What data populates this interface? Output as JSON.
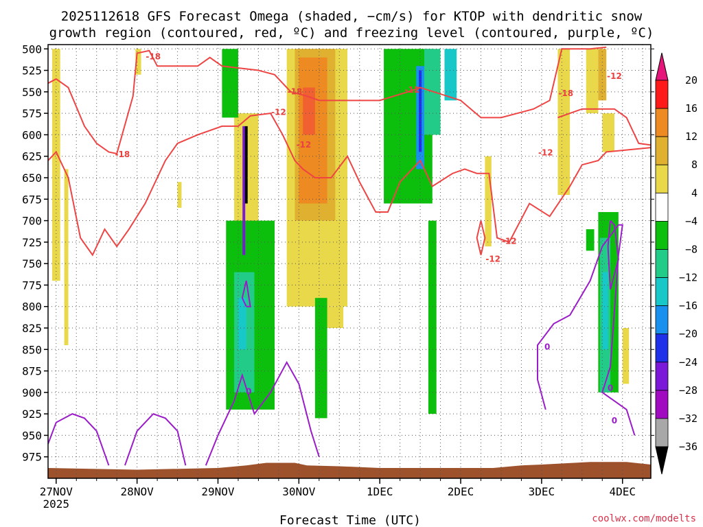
{
  "chart_data": {
    "type": "heatmap",
    "title_lines": [
      "2025112618 GFS Forecast Omega (shaded, −cm/s) for KTOP with dendritic snow",
      "growth region (contoured, red, ºC) and freezing level (contoured, purple, ºC)"
    ],
    "xlabel": "Forecast Time (UTC)",
    "credit": "coolwx.com/modelts",
    "x_ticks": [
      "27NOV",
      "28NOV",
      "29NOV",
      "30NOV",
      "1DEC",
      "2DEC",
      "3DEC",
      "4DEC"
    ],
    "x_sub_label": "2025",
    "x_range_days": [
      -0.1,
      7.35
    ],
    "y_ticks": [
      500,
      525,
      550,
      575,
      600,
      625,
      650,
      675,
      700,
      725,
      750,
      775,
      800,
      825,
      850,
      875,
      900,
      925,
      950,
      975
    ],
    "ylim_hpa": [
      495,
      1000
    ],
    "colorbar": {
      "labels": [
        "20",
        "16",
        "12",
        "8",
        "4",
        "−4",
        "−8",
        "−12",
        "−16",
        "−20",
        "−24",
        "−28",
        "−32",
        "−36"
      ],
      "colors": [
        "#ff1a1a",
        "#ee8a22",
        "#e0b030",
        "#e8d84a",
        "#ffffff",
        "#0cbf0c",
        "#22cc88",
        "#18c8c8",
        "#1a90ee",
        "#1e30e8",
        "#7a1ad8",
        "#a00ac0",
        "#a8a8a8"
      ],
      "top_arrow_color": "#e6157a",
      "bottom_arrow_color": "#000000"
    },
    "contour_labels_red": [
      "-18",
      "-18",
      "-18",
      "-18",
      "-12",
      "-12",
      "-12",
      "-12",
      "-12",
      "-12",
      "-12"
    ],
    "contour_labels_purple": [
      "0",
      "0",
      "0",
      "0"
    ],
    "omega_regions": [
      {
        "level": 4,
        "color": "#e8d84a",
        "x0": -0.05,
        "x1": 0.05,
        "p0": 500,
        "p1": 770
      },
      {
        "level": 4,
        "color": "#e8d84a",
        "x0": 0.1,
        "x1": 0.15,
        "p0": 640,
        "p1": 845
      },
      {
        "level": 4,
        "color": "#e8d84a",
        "x0": 0.98,
        "x1": 1.05,
        "p0": 500,
        "p1": 530
      },
      {
        "level": 4,
        "color": "#e8d84a",
        "x0": 1.5,
        "x1": 1.55,
        "p0": 655,
        "p1": 685
      },
      {
        "level": 4,
        "color": "#e8d84a",
        "x0": 2.2,
        "x1": 2.5,
        "p0": 575,
        "p1": 800
      },
      {
        "level": 4,
        "color": "#e8d84a",
        "x0": 2.85,
        "x1": 3.6,
        "p0": 500,
        "p1": 800
      },
      {
        "level": 8,
        "color": "#e0b030",
        "x0": 2.95,
        "x1": 3.45,
        "p0": 500,
        "p1": 700
      },
      {
        "level": 12,
        "color": "#ee8a22",
        "x0": 3.0,
        "x1": 3.35,
        "p0": 510,
        "p1": 680
      },
      {
        "level": 16,
        "color": "#f06030",
        "x0": 3.05,
        "x1": 3.2,
        "p0": 545,
        "p1": 600
      },
      {
        "level": 4,
        "color": "#e8d84a",
        "x0": 3.25,
        "x1": 3.55,
        "p0": 800,
        "p1": 825
      },
      {
        "level": 4,
        "color": "#e8d84a",
        "x0": 5.3,
        "x1": 5.38,
        "p0": 625,
        "p1": 730
      },
      {
        "level": 4,
        "color": "#e8d84a",
        "x0": 6.2,
        "x1": 6.35,
        "p0": 500,
        "p1": 670
      },
      {
        "level": 4,
        "color": "#e8d84a",
        "x0": 6.55,
        "x1": 6.7,
        "p0": 500,
        "p1": 575
      },
      {
        "level": 8,
        "color": "#e0b030",
        "x0": 6.7,
        "x1": 6.8,
        "p0": 500,
        "p1": 560
      },
      {
        "level": 4,
        "color": "#e8d84a",
        "x0": 6.75,
        "x1": 6.9,
        "p0": 575,
        "p1": 620
      },
      {
        "level": 4,
        "color": "#e8d84a",
        "x0": 7.0,
        "x1": 7.08,
        "p0": 825,
        "p1": 890
      },
      {
        "level": -4,
        "color": "#0cbf0c",
        "x0": 2.05,
        "x1": 2.25,
        "p0": 500,
        "p1": 580
      },
      {
        "level": -4,
        "color": "#0cbf0c",
        "x0": 2.1,
        "x1": 2.7,
        "p0": 700,
        "p1": 920
      },
      {
        "level": -8,
        "color": "#22cc88",
        "x0": 2.2,
        "x1": 2.45,
        "p0": 760,
        "p1": 900
      },
      {
        "level": -12,
        "color": "#18c8c8",
        "x0": 2.25,
        "x1": 2.35,
        "p0": 790,
        "p1": 850
      },
      {
        "level": -4,
        "color": "#0cbf0c",
        "x0": 3.2,
        "x1": 3.35,
        "p0": 790,
        "p1": 930
      },
      {
        "level": -4,
        "color": "#0cbf0c",
        "x0": 4.05,
        "x1": 4.65,
        "p0": 500,
        "p1": 680
      },
      {
        "level": -4,
        "color": "#0cbf0c",
        "x0": 4.6,
        "x1": 4.7,
        "p0": 700,
        "p1": 925
      },
      {
        "level": -8,
        "color": "#22cc88",
        "x0": 4.55,
        "x1": 4.75,
        "p0": 500,
        "p1": 600
      },
      {
        "level": -12,
        "color": "#18c8c8",
        "x0": 4.8,
        "x1": 4.95,
        "p0": 500,
        "p1": 560
      },
      {
        "level": -16,
        "color": "#1a90ee",
        "x0": 4.45,
        "x1": 4.55,
        "p0": 520,
        "p1": 640
      },
      {
        "level": -4,
        "color": "#0cbf0c",
        "x0": 6.55,
        "x1": 6.65,
        "p0": 710,
        "p1": 735
      },
      {
        "level": -4,
        "color": "#0cbf0c",
        "x0": 6.7,
        "x1": 6.95,
        "p0": 690,
        "p1": 900
      },
      {
        "level": -8,
        "color": "#22cc88",
        "x0": 6.72,
        "x1": 6.85,
        "p0": 720,
        "p1": 900
      },
      {
        "level": -12,
        "color": "#18c8c8",
        "x0": 6.75,
        "x1": 6.82,
        "p0": 760,
        "p1": 850
      }
    ],
    "omega_spikes": [
      {
        "level": -24,
        "color": "#7a1ad8",
        "x": 2.32,
        "p0": 590,
        "p1": 740
      },
      {
        "level": -36,
        "color": "#000000",
        "x": 2.35,
        "p0": 590,
        "p1": 680
      },
      {
        "level": -20,
        "color": "#1e30e8",
        "x": 4.5,
        "p0": 525,
        "p1": 620
      }
    ],
    "red_minus18_upper": [
      [
        -0.1,
        540
      ],
      [
        0,
        535
      ],
      [
        0.15,
        545
      ],
      [
        0.35,
        590
      ],
      [
        0.5,
        610
      ],
      [
        0.65,
        620
      ],
      [
        0.75,
        622
      ],
      [
        0.95,
        555
      ],
      [
        1.0,
        505
      ],
      [
        1.15,
        502
      ],
      [
        1.25,
        520
      ],
      [
        1.5,
        520
      ],
      [
        1.75,
        520
      ],
      [
        1.9,
        510
      ],
      [
        2.05,
        520
      ],
      [
        2.5,
        525
      ],
      [
        2.7,
        530
      ],
      [
        2.9,
        550
      ],
      [
        3.1,
        555
      ],
      [
        3.25,
        560
      ],
      [
        3.5,
        560
      ],
      [
        4.0,
        560
      ],
      [
        4.35,
        550
      ],
      [
        4.5,
        545
      ],
      [
        5.0,
        560
      ],
      [
        5.25,
        580
      ],
      [
        5.5,
        580
      ],
      [
        5.9,
        570
      ],
      [
        6.1,
        560
      ],
      [
        6.25,
        500
      ],
      [
        6.6,
        500
      ],
      [
        6.8,
        498
      ]
    ],
    "red_minus18_lower": [
      [
        6.2,
        580
      ],
      [
        6.5,
        570
      ],
      [
        6.65,
        570
      ],
      [
        6.9,
        570
      ],
      [
        7.05,
        580
      ],
      [
        7.2,
        610
      ],
      [
        7.35,
        612
      ]
    ],
    "red_minus12": [
      [
        -0.1,
        630
      ],
      [
        0,
        620
      ],
      [
        0.15,
        650
      ],
      [
        0.3,
        720
      ],
      [
        0.45,
        740
      ],
      [
        0.6,
        710
      ],
      [
        0.75,
        730
      ],
      [
        0.9,
        710
      ],
      [
        1.0,
        695
      ],
      [
        1.1,
        680
      ],
      [
        1.2,
        660
      ],
      [
        1.35,
        630
      ],
      [
        1.5,
        610
      ],
      [
        1.75,
        600
      ],
      [
        2.05,
        590
      ],
      [
        2.25,
        590
      ],
      [
        2.4,
        578
      ],
      [
        2.65,
        575
      ],
      [
        2.8,
        600
      ],
      [
        2.95,
        630
      ],
      [
        3.05,
        640
      ],
      [
        3.2,
        650
      ],
      [
        3.4,
        650
      ],
      [
        3.6,
        625
      ],
      [
        3.75,
        655
      ],
      [
        3.95,
        690
      ],
      [
        4.1,
        690
      ],
      [
        4.25,
        655
      ],
      [
        4.5,
        630
      ],
      [
        4.65,
        660
      ],
      [
        4.9,
        645
      ],
      [
        5.05,
        640
      ],
      [
        5.2,
        645
      ],
      [
        5.35,
        645
      ],
      [
        5.45,
        720
      ],
      [
        5.6,
        725
      ],
      [
        5.85,
        680
      ],
      [
        6.1,
        695
      ],
      [
        6.35,
        660
      ],
      [
        6.5,
        635
      ],
      [
        6.7,
        630
      ],
      [
        6.8,
        620
      ],
      [
        7.35,
        615
      ]
    ],
    "red_closed": [
      [
        5.25,
        740
      ],
      [
        5.2,
        720
      ],
      [
        5.25,
        700
      ],
      [
        5.3,
        720
      ],
      [
        5.25,
        740
      ]
    ],
    "purple_lower_left": [
      [
        -0.1,
        960
      ],
      [
        0,
        935
      ],
      [
        0.2,
        925
      ],
      [
        0.35,
        930
      ],
      [
        0.5,
        945
      ],
      [
        0.65,
        985
      ]
    ],
    "purple_lower_mid": [
      [
        0.85,
        985
      ],
      [
        1.0,
        945
      ],
      [
        1.2,
        925
      ],
      [
        1.35,
        930
      ],
      [
        1.5,
        945
      ],
      [
        1.6,
        985
      ]
    ],
    "purple_right_steep": [
      [
        1.85,
        985
      ],
      [
        2.0,
        950
      ],
      [
        2.2,
        910
      ],
      [
        2.3,
        880
      ],
      [
        2.35,
        895
      ],
      [
        2.45,
        925
      ],
      [
        2.65,
        900
      ],
      [
        2.85,
        865
      ],
      [
        3.0,
        890
      ],
      [
        3.15,
        945
      ],
      [
        3.25,
        975
      ]
    ],
    "purple_small_loop": [
      [
        2.35,
        800
      ],
      [
        2.3,
        790
      ],
      [
        2.35,
        770
      ],
      [
        2.4,
        800
      ],
      [
        2.35,
        800
      ]
    ],
    "purple_right_arc": [
      [
        6.05,
        920
      ],
      [
        5.95,
        885
      ],
      [
        5.95,
        845
      ],
      [
        6.15,
        820
      ],
      [
        6.35,
        810
      ],
      [
        6.6,
        770
      ],
      [
        6.75,
        730
      ],
      [
        6.95,
        705
      ],
      [
        7.0,
        705
      ],
      [
        6.95,
        740
      ],
      [
        6.85,
        870
      ],
      [
        6.75,
        900
      ],
      [
        6.9,
        910
      ],
      [
        7.05,
        920
      ],
      [
        7.15,
        950
      ]
    ],
    "purple_right_closed": [
      [
        6.85,
        700
      ],
      [
        6.9,
        705
      ],
      [
        6.95,
        745
      ],
      [
        6.85,
        780
      ],
      [
        6.82,
        730
      ],
      [
        6.85,
        700
      ]
    ],
    "ground_terrain": [
      [
        -0.1,
        988
      ],
      [
        1.0,
        990
      ],
      [
        2.0,
        988
      ],
      [
        2.35,
        985
      ],
      [
        2.6,
        982
      ],
      [
        2.95,
        982
      ],
      [
        3.1,
        985
      ],
      [
        3.5,
        986
      ],
      [
        4.0,
        988
      ],
      [
        5.0,
        988
      ],
      [
        5.4,
        988
      ],
      [
        5.75,
        985
      ],
      [
        6.0,
        984
      ],
      [
        6.4,
        982
      ],
      [
        6.6,
        981
      ],
      [
        7.05,
        981
      ],
      [
        7.35,
        984
      ]
    ]
  }
}
